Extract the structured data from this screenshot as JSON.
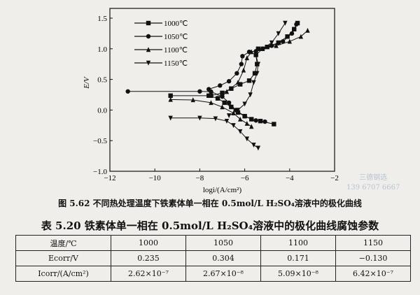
{
  "chart_data": {
    "type": "line",
    "xlabel": "logi/(A/cm²)",
    "ylabel": "E/V",
    "xlim": [
      -12,
      -2
    ],
    "ylim": [
      -1.0,
      1.55
    ],
    "xticks": [
      -12,
      -10,
      -8,
      -6,
      -4,
      -2
    ],
    "yticks": [
      -1.0,
      -0.5,
      0.0,
      0.5,
      1.0,
      1.5
    ],
    "grid": false,
    "legend_position": "top-left",
    "series": [
      {
        "name": "1000℃",
        "marker": "square",
        "points": [
          [
            -9.3,
            0.235
          ],
          [
            -7.6,
            0.235
          ],
          [
            -7.2,
            0.19
          ],
          [
            -6.9,
            0.12
          ],
          [
            -6.6,
            0.05
          ],
          [
            -6.3,
            -0.04
          ],
          [
            -6.0,
            -0.1
          ],
          [
            -5.7,
            -0.15
          ],
          [
            -5.3,
            -0.18
          ],
          [
            -4.7,
            -0.23
          ]
        ],
        "anodic": [
          [
            -7.5,
            0.235
          ],
          [
            -7.0,
            0.28
          ],
          [
            -6.6,
            0.35
          ],
          [
            -6.2,
            0.42
          ],
          [
            -5.8,
            0.48
          ],
          [
            -5.55,
            0.6
          ],
          [
            -5.45,
            0.75
          ],
          [
            -5.5,
            0.9
          ],
          [
            -5.4,
            1.0
          ],
          [
            -5.0,
            1.03
          ],
          [
            -4.5,
            1.1
          ],
          [
            -4.1,
            1.2
          ],
          [
            -3.8,
            1.32
          ],
          [
            -3.65,
            1.42
          ]
        ]
      },
      {
        "name": "1050℃",
        "marker": "circle",
        "points": [
          [
            -11.2,
            0.304
          ],
          [
            -8.0,
            0.304
          ],
          [
            -7.5,
            0.3
          ],
          [
            -7.0,
            0.22
          ],
          [
            -6.7,
            0.12
          ],
          [
            -6.4,
            0.0
          ],
          [
            -6.0,
            -0.1
          ],
          [
            -5.5,
            -0.17
          ],
          [
            -5.1,
            -0.19
          ]
        ],
        "anodic": [
          [
            -7.6,
            0.34
          ],
          [
            -7.1,
            0.4
          ],
          [
            -6.7,
            0.47
          ],
          [
            -6.35,
            0.6
          ],
          [
            -6.15,
            0.75
          ],
          [
            -6.1,
            0.88
          ],
          [
            -5.8,
            0.95
          ],
          [
            -5.5,
            0.96
          ],
          [
            -5.2,
            1.0
          ],
          [
            -4.8,
            1.05
          ],
          [
            -4.3,
            1.12
          ],
          [
            -3.9,
            1.25
          ],
          [
            -3.7,
            1.4
          ]
        ]
      },
      {
        "name": "1100℃",
        "marker": "triangle-up",
        "points": [
          [
            -9.3,
            0.171
          ],
          [
            -8.3,
            0.165
          ],
          [
            -7.5,
            0.12
          ],
          [
            -7.0,
            0.05
          ],
          [
            -6.5,
            -0.05
          ],
          [
            -6.2,
            -0.15
          ],
          [
            -5.9,
            -0.22
          ],
          [
            -5.7,
            -0.27
          ]
        ],
        "anodic": [
          [
            -7.2,
            0.2
          ],
          [
            -6.8,
            0.3
          ],
          [
            -6.3,
            0.45
          ],
          [
            -6.05,
            0.65
          ],
          [
            -5.9,
            0.85
          ],
          [
            -5.7,
            0.95
          ],
          [
            -5.2,
            1.0
          ],
          [
            -4.6,
            1.05
          ],
          [
            -4.0,
            1.12
          ],
          [
            -3.5,
            1.2
          ],
          [
            -3.2,
            1.3
          ]
        ]
      },
      {
        "name": "1150℃",
        "marker": "triangle-down",
        "points": [
          [
            -9.3,
            -0.13
          ],
          [
            -8.0,
            -0.13
          ],
          [
            -7.3,
            -0.14
          ],
          [
            -6.8,
            -0.18
          ],
          [
            -6.5,
            -0.25
          ],
          [
            -6.2,
            -0.35
          ],
          [
            -5.9,
            -0.47
          ],
          [
            -5.6,
            -0.57
          ],
          [
            -5.4,
            -0.62
          ]
        ],
        "anodic": [
          [
            -6.7,
            -0.09
          ],
          [
            -6.3,
            0.0
          ],
          [
            -6.0,
            0.1
          ],
          [
            -5.75,
            0.25
          ],
          [
            -5.6,
            0.45
          ],
          [
            -5.45,
            0.6
          ],
          [
            -5.4,
            0.75
          ],
          [
            -5.5,
            0.9
          ],
          [
            -5.2,
            1.0
          ],
          [
            -4.8,
            1.1
          ],
          [
            -4.5,
            1.25
          ],
          [
            -4.2,
            1.42
          ]
        ]
      }
    ]
  },
  "figure_caption": "图 5.62  不同热处理温度下铁素体单一相在 0.5mol/L H₂SO₄溶液中的极化曲线",
  "table_caption": "表 5.20  铁素体单一相在 0.5mol/L H₂SO₄溶液中的极化曲线腐蚀参数",
  "table": {
    "rows": [
      [
        "温度/℃",
        "1000",
        "1050",
        "1100",
        "1150"
      ],
      [
        "Ecorr/V",
        "0.235",
        "0.304",
        "0.171",
        "−0.130"
      ],
      [
        "Icorr/(A/cm²)",
        "2.62×10⁻⁷",
        "2.67×10⁻⁸",
        "5.09×10⁻⁸",
        "6.42×10⁻⁷"
      ]
    ]
  },
  "watermark": {
    "line1": "三德钢选",
    "line2": "139 6707 6667"
  }
}
